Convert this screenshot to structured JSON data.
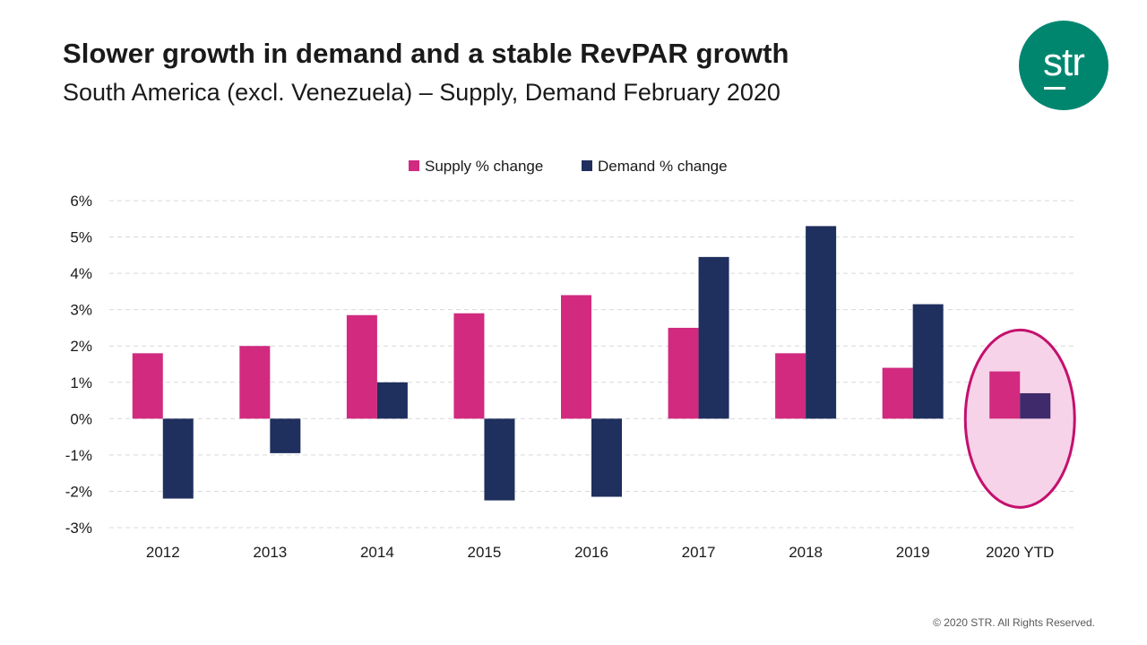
{
  "header": {
    "title": "Slower growth in demand and a stable RevPAR growth",
    "subtitle": "South America (excl. Venezuela) – Supply, Demand February 2020"
  },
  "logo": {
    "text": "str"
  },
  "footer": {
    "copyright": "© 2020 STR. All Rights Reserved."
  },
  "colors": {
    "supply": "#d12a7f",
    "demand": "#1f2f5e",
    "demand_highlight": "#3f2a6b",
    "highlight_fill": "#f6d3e8",
    "highlight_stroke": "#c4106e",
    "grid": "#d9d9d9"
  },
  "chart_data": {
    "type": "bar",
    "title": "",
    "xlabel": "",
    "ylabel": "",
    "categories": [
      "2012",
      "2013",
      "2014",
      "2015",
      "2016",
      "2017",
      "2018",
      "2019",
      "2020 YTD"
    ],
    "series": [
      {
        "name": "Supply % change",
        "values": [
          1.8,
          2.0,
          2.85,
          2.9,
          3.4,
          2.5,
          1.8,
          1.4,
          1.3
        ]
      },
      {
        "name": "Demand % change",
        "values": [
          -2.2,
          -0.95,
          1.0,
          -2.25,
          -2.15,
          4.45,
          5.3,
          3.15,
          0.7
        ]
      }
    ],
    "ylim": [
      -3,
      6
    ],
    "yticks": [
      "-3%",
      "-2%",
      "-1%",
      "0%",
      "1%",
      "2%",
      "3%",
      "4%",
      "5%",
      "6%"
    ],
    "grid": true,
    "legend": "top-center",
    "highlight": {
      "category": "2020 YTD",
      "shape": "ellipse"
    }
  }
}
